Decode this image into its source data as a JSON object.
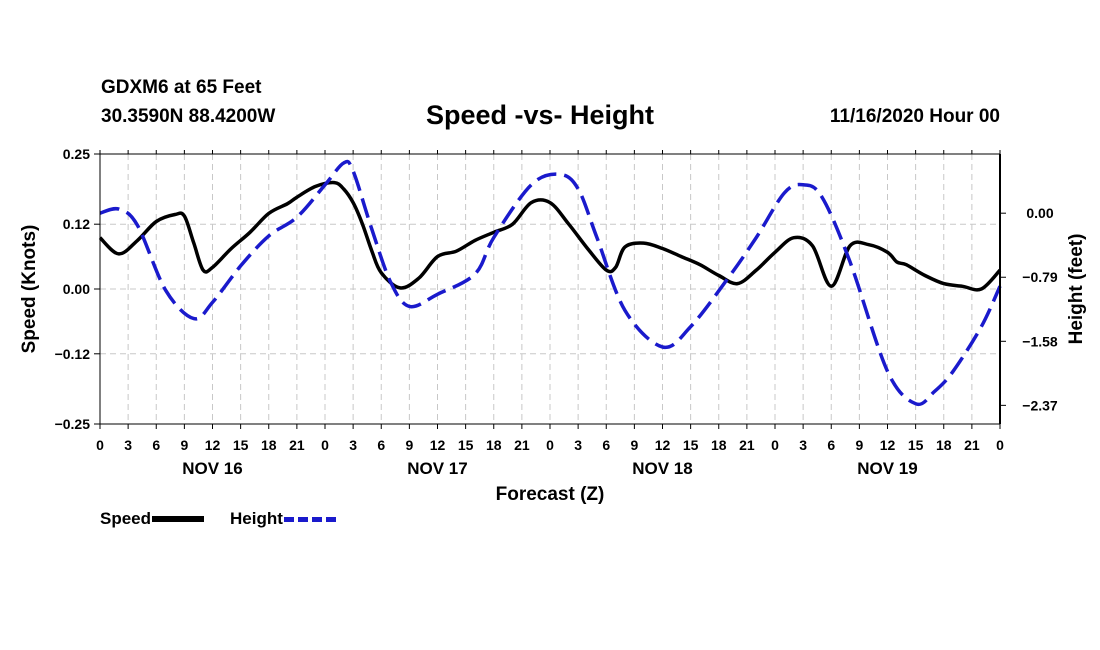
{
  "header": {
    "station": "GDXM6 at 65 Feet",
    "coords": "30.3590N 88.4200W",
    "title": "Speed -vs- Height",
    "run": "11/16/2020 Hour 00"
  },
  "legend": {
    "speed_label": "Speed",
    "height_label": "Height"
  },
  "colors": {
    "speed": "#000000",
    "height": "#1a1acc",
    "grid": "#c8c8c8"
  },
  "chart_data": {
    "type": "line",
    "title": "Speed -vs- Height",
    "xlabel": "Forecast (Z)",
    "ylabel": "Speed (Knots)",
    "y2label": "Height (feet)",
    "xlim": [
      0,
      96
    ],
    "ylim": [
      -0.25,
      0.25
    ],
    "y2lim": [
      -2.6,
      0.73
    ],
    "yticks": [
      0.25,
      0.12,
      0.0,
      -0.12,
      -0.25
    ],
    "ytick_labels": [
      "0.25",
      "0.12",
      "0.00",
      "−0.12",
      "−0.25"
    ],
    "y2ticks": [
      0.0,
      -0.79,
      -1.58,
      -2.37
    ],
    "y2tick_labels": [
      "0.00",
      "−0.79",
      "−1.58",
      "−2.37"
    ],
    "xtick_labels": [
      "0",
      "3",
      "6",
      "9",
      "12",
      "15",
      "18",
      "21",
      "0",
      "3",
      "6",
      "9",
      "12",
      "15",
      "18",
      "21",
      "0",
      "3",
      "6",
      "9",
      "12",
      "15",
      "18",
      "21",
      "0",
      "3",
      "6",
      "9",
      "12",
      "15",
      "18",
      "21",
      "0"
    ],
    "day_labels": [
      {
        "label": "NOV 16",
        "hour": 12
      },
      {
        "label": "NOV 17",
        "hour": 36
      },
      {
        "label": "NOV 18",
        "hour": 60
      },
      {
        "label": "NOV 19",
        "hour": 84
      }
    ],
    "series": [
      {
        "name": "Speed",
        "axis": "left",
        "x": [
          0,
          2,
          4,
          6,
          8,
          9,
          10,
          11,
          12,
          14,
          16,
          18,
          20,
          21,
          23,
          25,
          26,
          27,
          28,
          29,
          30,
          32,
          34,
          36,
          38,
          40,
          42,
          44,
          46,
          48,
          50,
          52,
          54,
          55,
          56,
          58,
          60,
          62,
          64,
          66,
          68,
          70,
          72,
          74,
          76,
          78,
          80,
          82,
          84,
          85,
          86,
          88,
          90,
          92,
          94,
          96
        ],
        "y": [
          0.095,
          0.065,
          0.09,
          0.125,
          0.138,
          0.135,
          0.085,
          0.035,
          0.04,
          0.075,
          0.105,
          0.14,
          0.158,
          0.17,
          0.19,
          0.197,
          0.185,
          0.16,
          0.12,
          0.07,
          0.03,
          0.002,
          0.02,
          0.06,
          0.07,
          0.09,
          0.105,
          0.12,
          0.16,
          0.16,
          0.12,
          0.075,
          0.035,
          0.04,
          0.078,
          0.085,
          0.075,
          0.06,
          0.045,
          0.025,
          0.01,
          0.035,
          0.068,
          0.095,
          0.08,
          0.005,
          0.08,
          0.082,
          0.068,
          0.05,
          0.045,
          0.025,
          0.01,
          0.005,
          0.0,
          0.035
        ]
      },
      {
        "name": "Height",
        "axis": "right",
        "x": [
          0,
          2,
          4,
          7,
          10,
          12,
          15,
          18,
          21,
          24,
          26,
          27,
          29,
          31,
          33,
          36,
          40,
          42,
          46,
          49,
          51,
          53,
          56,
          60,
          63,
          67,
          70,
          73,
          75,
          77,
          80,
          84,
          87,
          89,
          91,
          94,
          96
        ],
        "y": [
          0.0,
          0.05,
          -0.15,
          -0.95,
          -1.3,
          -1.1,
          -0.65,
          -0.28,
          -0.05,
          0.35,
          0.62,
          0.52,
          -0.2,
          -0.85,
          -1.15,
          -1.0,
          -0.75,
          -0.3,
          0.35,
          0.48,
          0.3,
          -0.3,
          -1.2,
          -1.65,
          -1.4,
          -0.8,
          -0.3,
          0.25,
          0.35,
          0.2,
          -0.6,
          -1.95,
          -2.35,
          -2.2,
          -1.95,
          -1.4,
          -0.9
        ]
      }
    ]
  }
}
